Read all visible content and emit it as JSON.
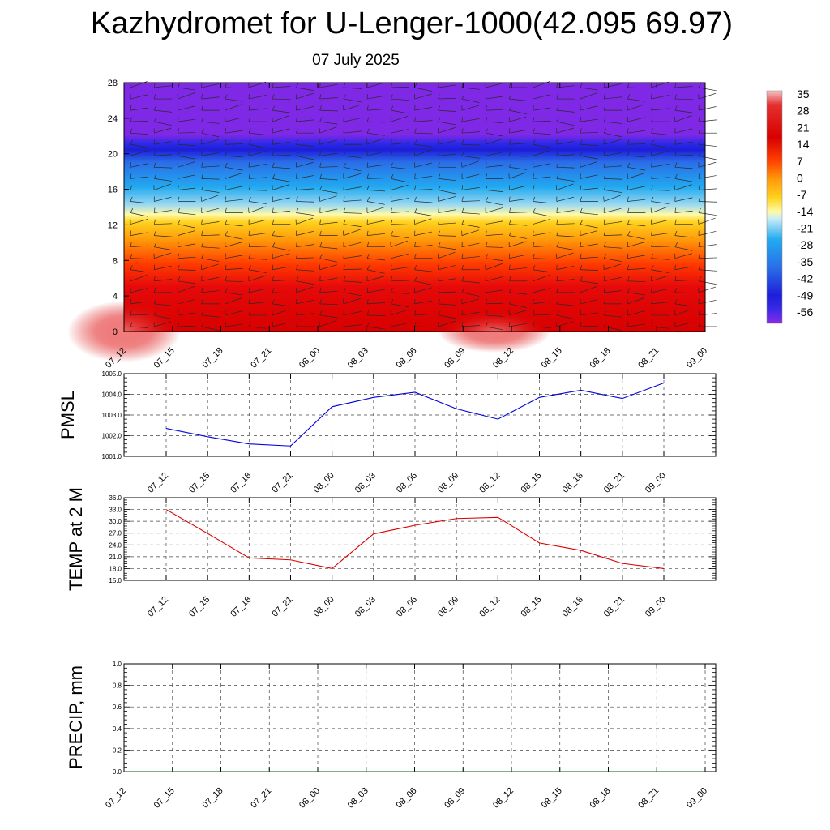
{
  "title": "Kazhydromet for U-Lenger-1000(42.095 69.97)",
  "subtitle": "07 July 2025",
  "time_labels": [
    "07_12",
    "07_15",
    "07_18",
    "07_21",
    "08_00",
    "08_03",
    "08_06",
    "08_09",
    "08_12",
    "08_15",
    "08_18",
    "08_21",
    "09_00"
  ],
  "colors": {
    "pmsl_line": "#0000dd",
    "temp_line": "#dd0000",
    "precip_line": "#006400"
  },
  "chart_data": [
    {
      "type": "heatmap",
      "title": "",
      "x": [
        "07_12",
        "07_15",
        "07_18",
        "07_21",
        "08_00",
        "08_03",
        "08_06",
        "08_09",
        "08_12",
        "08_15",
        "08_18",
        "08_21",
        "09_00"
      ],
      "y_ticks": [
        0,
        4,
        8,
        12,
        16,
        20,
        24,
        28
      ],
      "ylim": [
        0,
        28
      ],
      "colorbar": {
        "labels": [
          "35",
          "28",
          "21",
          "14",
          "7",
          "0",
          "-7",
          "-14",
          "-21",
          "-28",
          "-35",
          "-42",
          "-49",
          "-56"
        ],
        "range": [
          -60,
          38
        ]
      },
      "has_wind_barbs": true,
      "freezing_level_approx": 12.5
    },
    {
      "type": "line",
      "ylabel": "PMSL",
      "x": [
        "07_12",
        "07_15",
        "07_18",
        "07_21",
        "08_00",
        "08_03",
        "08_06",
        "08_09",
        "08_12",
        "08_15",
        "08_18",
        "08_21",
        "09_00"
      ],
      "y_ticks": [
        "1001.0",
        "1002.0",
        "1003.0",
        "1004.0",
        "1005.0"
      ],
      "ylim": [
        1001.0,
        1005.0
      ],
      "series": [
        {
          "values": [
            1002.35,
            1001.95,
            1001.6,
            1001.5,
            1003.4,
            1003.85,
            1004.1,
            1003.3,
            1002.8,
            1003.85,
            1004.2,
            1003.8,
            1004.55
          ]
        }
      ],
      "grid": true
    },
    {
      "type": "line",
      "ylabel": "TEMP at 2 M",
      "x": [
        "07_12",
        "07_15",
        "07_18",
        "07_21",
        "08_00",
        "08_03",
        "08_06",
        "08_09",
        "08_12",
        "08_15",
        "08_18",
        "08_21",
        "09_00"
      ],
      "y_ticks": [
        "15.0",
        "18.0",
        "21.0",
        "24.0",
        "27.0",
        "30.0",
        "33.0",
        "36.0"
      ],
      "ylim": [
        15.0,
        36.0
      ],
      "series": [
        {
          "values": [
            33.0,
            26.9,
            20.7,
            20.2,
            18.0,
            26.8,
            29.0,
            30.7,
            31.0,
            24.5,
            22.6,
            19.3,
            18.0
          ]
        }
      ],
      "grid": true
    },
    {
      "type": "line",
      "ylabel": "PRECIP, mm",
      "x": [
        "07_12",
        "07_15",
        "07_18",
        "07_21",
        "08_00",
        "08_03",
        "08_06",
        "08_09",
        "08_12",
        "08_15",
        "08_18",
        "08_21",
        "09_00"
      ],
      "y_ticks": [
        "0.0",
        "0.2",
        "0.4",
        "0.6",
        "0.8",
        "1.0"
      ],
      "ylim": [
        0.0,
        1.0
      ],
      "series": [
        {
          "values": [
            0,
            0,
            0,
            0,
            0,
            0,
            0,
            0,
            0,
            0,
            0,
            0,
            0
          ]
        }
      ],
      "grid": true
    }
  ]
}
